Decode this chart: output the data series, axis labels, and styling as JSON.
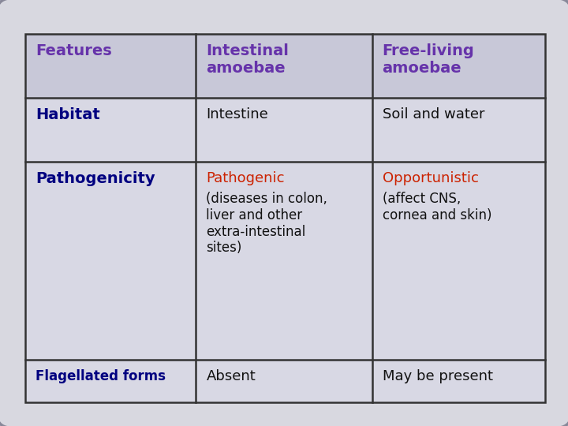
{
  "outer_bg": "#b8b8cc",
  "inner_bg": "#d8d8e0",
  "table_bg": "#d0d0dc",
  "table_border_color": "#333333",
  "header_row_bg": "#c8c8d8",
  "data_row_bg": "#d8d8e4",
  "header_text_color": "#6633aa",
  "row_label_color": "#000080",
  "body_text_color": "#111111",
  "red_text_color": "#cc2200",
  "header": [
    "Features",
    "Intestinal\namoebae",
    "Free-living\namoebae"
  ],
  "figsize": [
    7.2,
    5.4
  ],
  "dpi": 100,
  "col_starts": [
    0.045,
    0.345,
    0.655
  ],
  "col_ends": [
    0.345,
    0.655,
    0.96
  ],
  "row_tops": [
    0.92,
    0.77,
    0.62,
    0.155
  ],
  "row_bottoms": [
    0.77,
    0.62,
    0.155,
    0.055
  ]
}
